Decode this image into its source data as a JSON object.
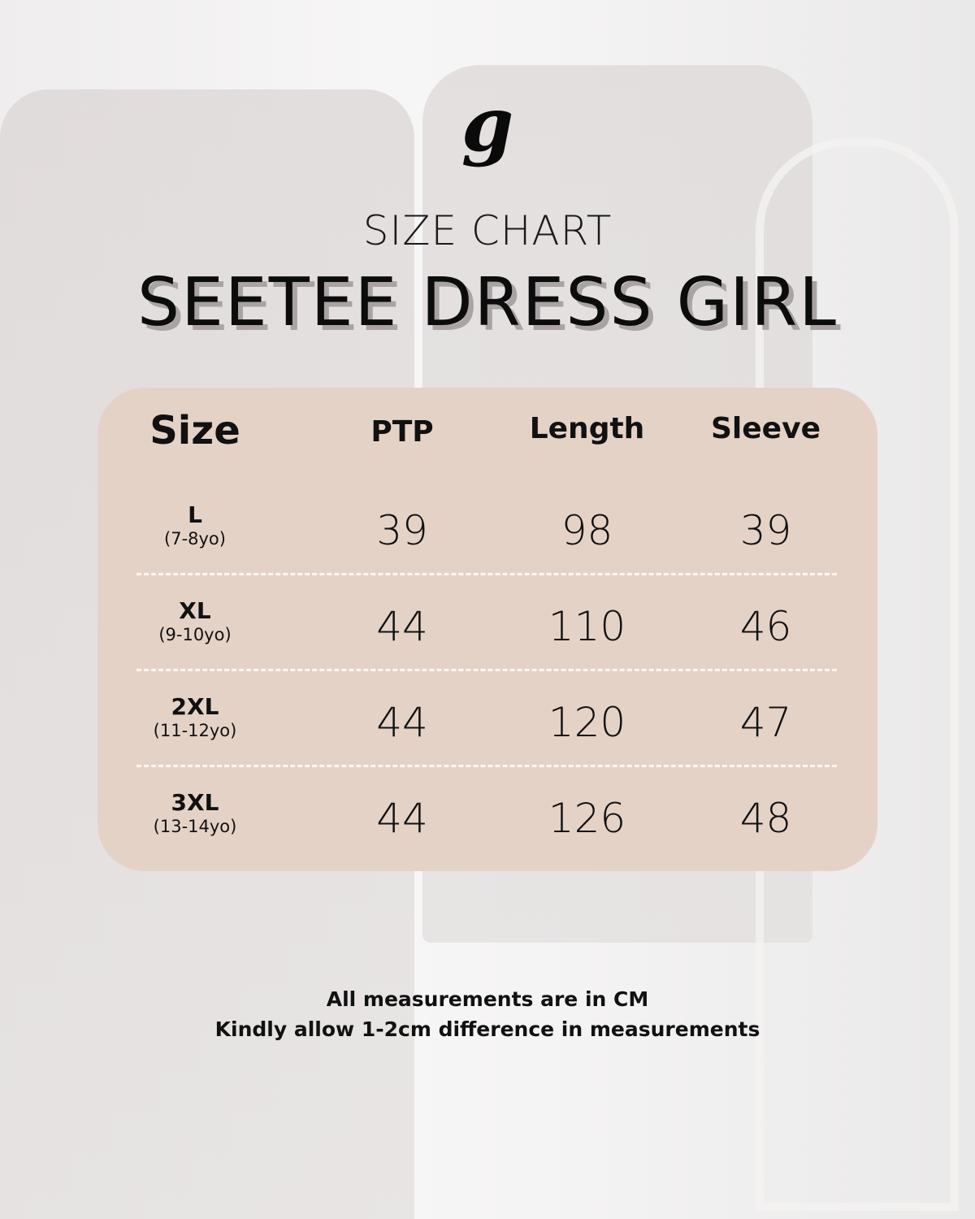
{
  "logo": {
    "text": "g"
  },
  "subtitle": "SIZE CHART",
  "title": "SEETEE DRESS GIRL",
  "table": {
    "headers": [
      "Size",
      "PTP",
      "Length",
      "Sleeve"
    ],
    "rows": [
      {
        "size": "L",
        "age": "(7-8yo)",
        "ptp": "39",
        "length": "98",
        "sleeve": "39"
      },
      {
        "size": "XL",
        "age": "(9-10yo)",
        "ptp": "44",
        "length": "110",
        "sleeve": "46"
      },
      {
        "size": "2XL",
        "age": "(11-12yo)",
        "ptp": "44",
        "length": "120",
        "sleeve": "47"
      },
      {
        "size": "3XL",
        "age": "(13-14yo)",
        "ptp": "44",
        "length": "126",
        "sleeve": "48"
      }
    ]
  },
  "notes": [
    "All measurements are in CM",
    "Kindly allow 1-2cm difference in measurements"
  ],
  "colors": {
    "card": "#e5d2c7",
    "text": "#111111",
    "title_shadow": "#a9a3a3"
  }
}
